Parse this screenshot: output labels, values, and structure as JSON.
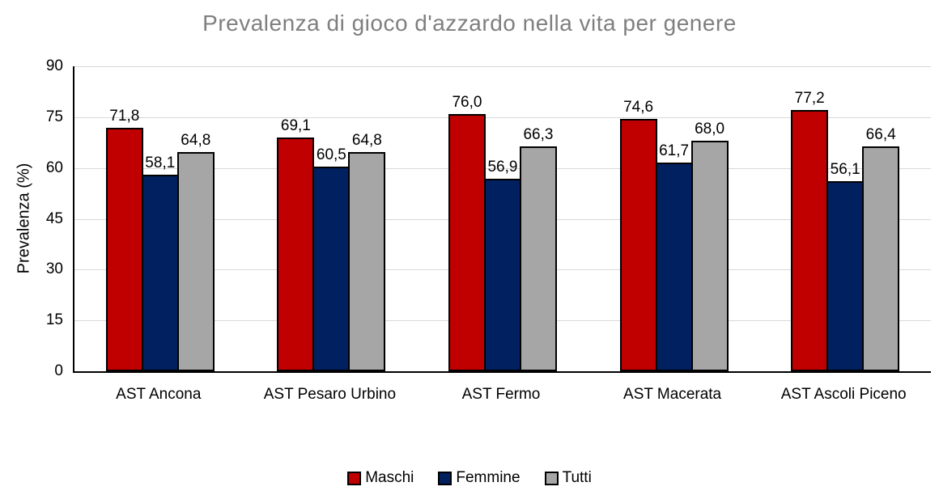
{
  "chart_data": {
    "type": "bar",
    "title": "Prevalenza di gioco d'azzardo nella vita per genere",
    "categories": [
      "AST Ancona",
      "AST Pesaro Urbino",
      "AST Fermo",
      "AST Macerata",
      "AST Ascoli Piceno"
    ],
    "series": [
      {
        "name": "Maschi",
        "color": "#C00000",
        "values": [
          71.8,
          69.1,
          76.0,
          74.6,
          77.2
        ]
      },
      {
        "name": "Femmine",
        "color": "#002060",
        "values": [
          58.1,
          60.5,
          56.9,
          61.7,
          56.1
        ]
      },
      {
        "name": "Tutti",
        "color": "#A6A6A6",
        "values": [
          64.8,
          64.8,
          66.3,
          68.0,
          66.4
        ]
      }
    ],
    "data_labels": [
      "71,8",
      "58,1",
      "64,8",
      "69,1",
      "60,5",
      "64,8",
      "76,0",
      "56,9",
      "66,3",
      "74,6",
      "61,7",
      "68,0",
      "77,2",
      "56,1",
      "66,4"
    ],
    "xlabel": "",
    "ylabel": "Prevalenza (%)",
    "ylim": [
      0,
      90
    ],
    "yticks": [
      0,
      15,
      30,
      45,
      60,
      75,
      90
    ],
    "grid": true,
    "legend_position": "bottom",
    "decimal_separator": ",",
    "colors": {
      "gridline": "#D9D9D9",
      "axis": "#000000",
      "title_text": "#7F7F7F",
      "bar_border": "#000000",
      "label_text": "#000000"
    }
  }
}
